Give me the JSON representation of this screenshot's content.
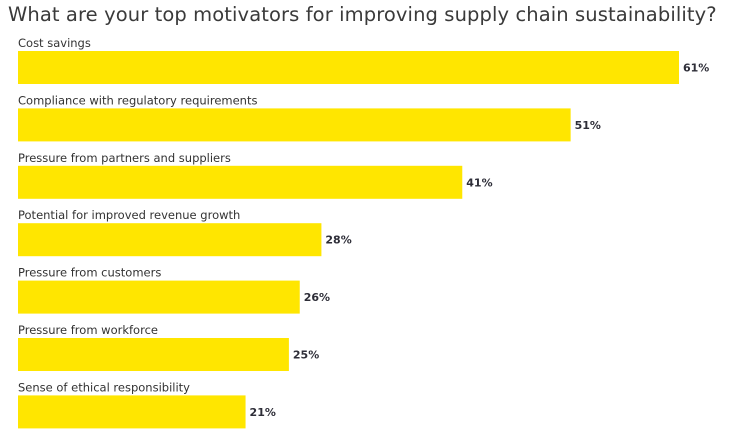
{
  "chart_data": {
    "type": "bar",
    "orientation": "horizontal",
    "title": "What are your top motivators for improving supply chain sustainability?",
    "categories": [
      "Cost savings",
      "Compliance with regulatory requirements",
      "Pressure from partners and suppliers",
      "Potential for improved revenue growth",
      "Pressure from customers",
      "Pressure from workforce",
      "Sense of ethical responsibility"
    ],
    "values": [
      61,
      51,
      41,
      28,
      26,
      25,
      21
    ],
    "value_labels": [
      "61%",
      "51%",
      "41%",
      "28%",
      "26%",
      "25%",
      "21%"
    ],
    "unit": "%",
    "xlim": [
      0,
      61
    ],
    "grid": false,
    "legend": "none",
    "bar_color": "#FFE600"
  }
}
